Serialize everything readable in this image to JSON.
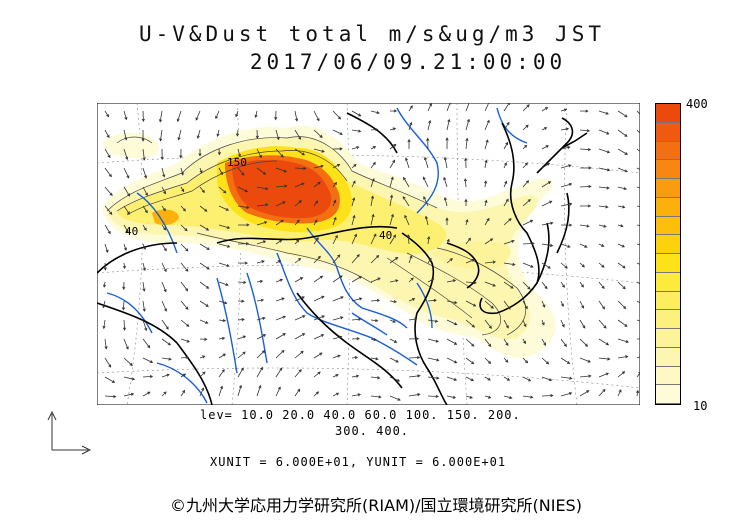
{
  "title": {
    "line1": "U-V&Dust total m/s&ug/m3 JST",
    "line2": "2017/06/09.21:00:00"
  },
  "colorbar": {
    "max_label": "400",
    "min_label": "10",
    "colors": [
      "#fdfbd8",
      "#fdf8c4",
      "#fdf6b0",
      "#fdf39a",
      "#fdf07e",
      "#fdee60",
      "#fdeb3c",
      "#fde21a",
      "#fcd20c",
      "#fcc00a",
      "#fbb00c",
      "#f99c10",
      "#f78712",
      "#f46f12",
      "#f05a10",
      "#ec4a0c"
    ]
  },
  "levels": {
    "line1": "lev= 10.0 20.0 40.0 60.0 100. 150. 200.",
    "line2": "300. 400."
  },
  "units": {
    "text": "XUNIT = 6.000E+01, YUNIT = 6.000E+01"
  },
  "map_labels": [
    {
      "text": "150"
    },
    {
      "text": "40"
    },
    {
      "text": "40"
    }
  ],
  "credit": "©九州大学応用力学研究所(RIAM)/国立環境研究所(NIES)",
  "colors": {
    "rivers": "#1a5fd8",
    "coast": "#000000",
    "arrows": "#333333"
  }
}
